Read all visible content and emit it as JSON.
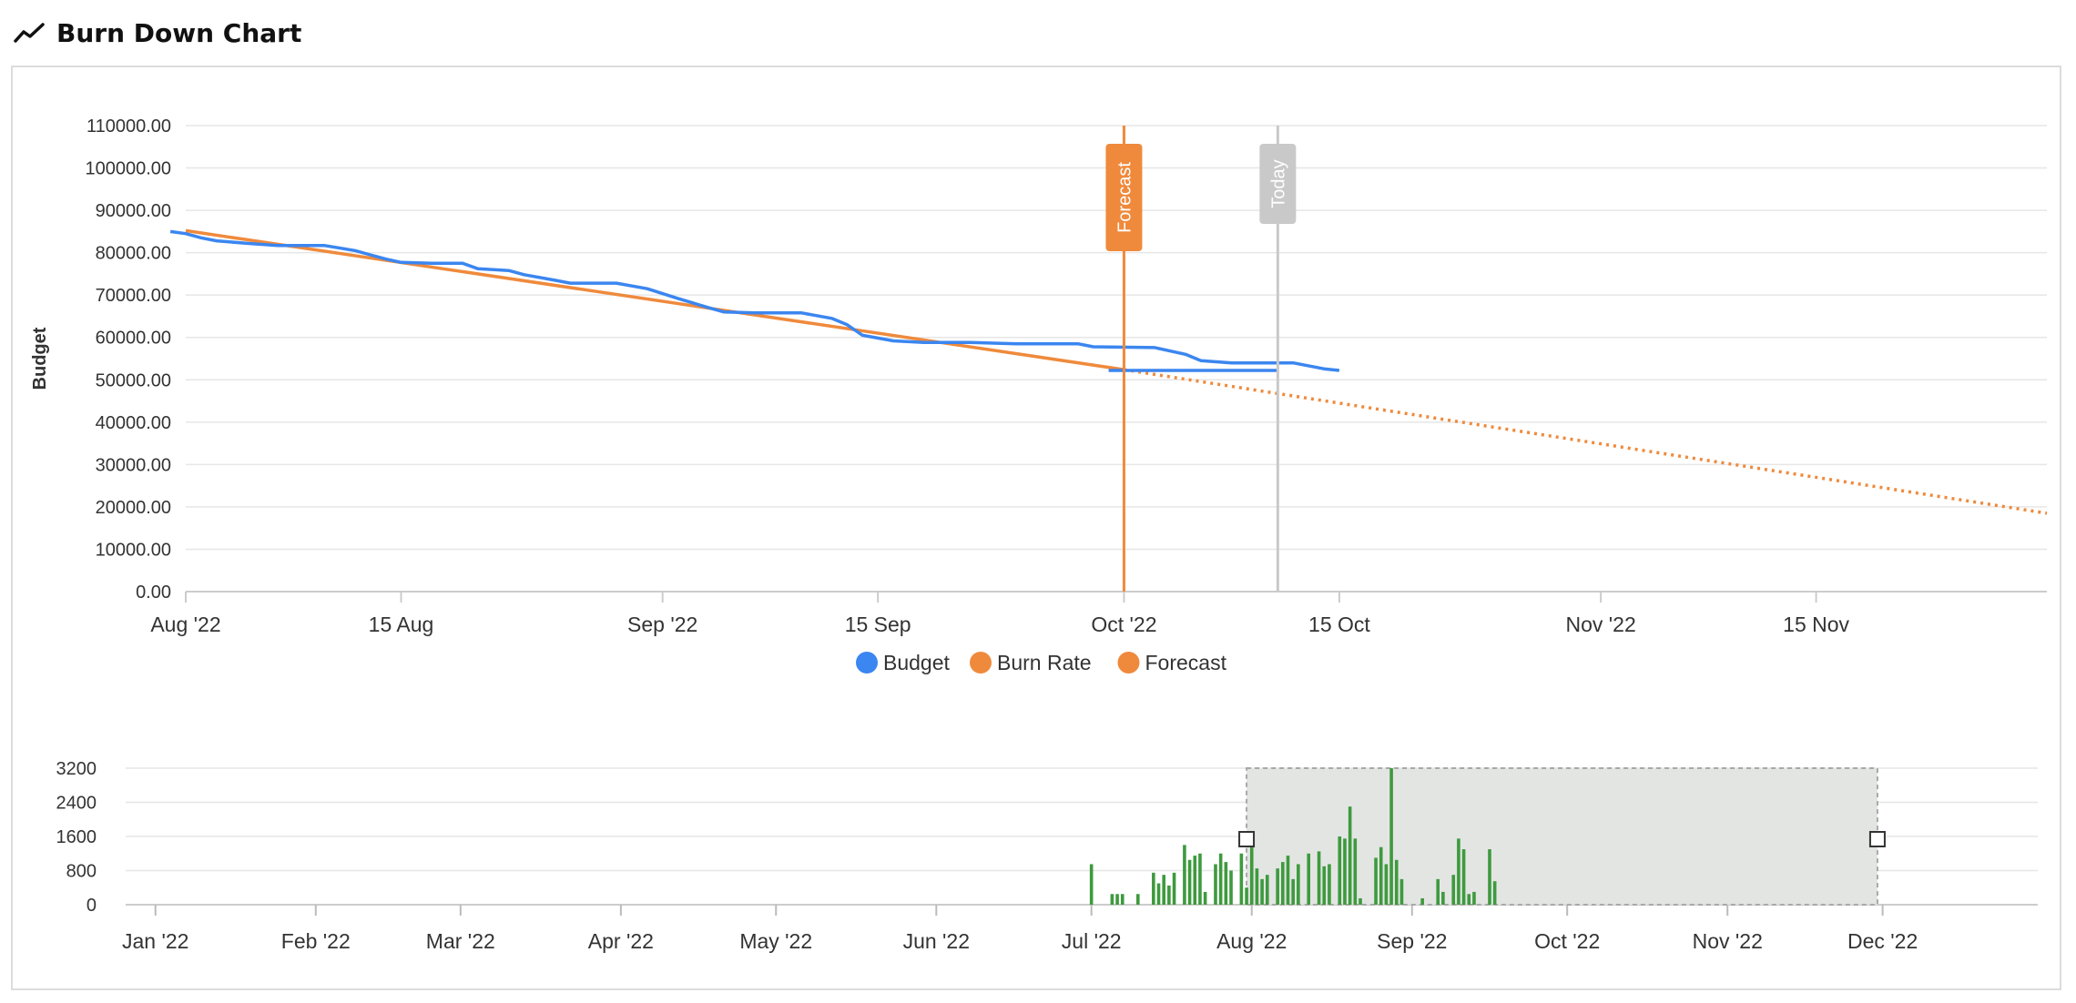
{
  "header": {
    "title": "Burn Down Chart",
    "icon": "line-chart-icon"
  },
  "colors": {
    "budget": "#3b86f0",
    "burn_rate": "#ef8a3c",
    "forecast": "#ef8a3c",
    "today_band": "#c9c9c9",
    "bars": "#3e9a3e",
    "navigator_mask": "#e3e5e3",
    "grid": "#e6e6e6"
  },
  "chart_data": [
    {
      "type": "line",
      "title": "",
      "xlabel": "",
      "ylabel": "Budget",
      "x_range": [
        "2022-08-01",
        "2022-11-30"
      ],
      "ylim": [
        0,
        110000
      ],
      "y_ticks": [
        "0.00",
        "10000.00",
        "20000.00",
        "30000.00",
        "40000.00",
        "50000.00",
        "60000.00",
        "70000.00",
        "80000.00",
        "90000.00",
        "100000.00",
        "110000.00"
      ],
      "x_ticks": [
        {
          "date": "2022-08-01",
          "label": "Aug '22"
        },
        {
          "date": "2022-08-15",
          "label": "15 Aug"
        },
        {
          "date": "2022-09-01",
          "label": "Sep '22"
        },
        {
          "date": "2022-09-15",
          "label": "15 Sep"
        },
        {
          "date": "2022-10-01",
          "label": "Oct '22"
        },
        {
          "date": "2022-10-15",
          "label": "15 Oct"
        },
        {
          "date": "2022-11-01",
          "label": "Nov '22"
        },
        {
          "date": "2022-11-15",
          "label": "15 Nov"
        }
      ],
      "legend_position": "bottom-center",
      "grid": true,
      "series": [
        {
          "name": "Budget",
          "style": "solid",
          "points": [
            [
              "2022-07-31",
              85000
            ],
            [
              "2022-08-01",
              84500
            ],
            [
              "2022-08-02",
              83500
            ],
            [
              "2022-08-03",
              82800
            ],
            [
              "2022-08-05",
              82200
            ],
            [
              "2022-08-07",
              81700
            ],
            [
              "2022-08-10",
              81700
            ],
            [
              "2022-08-12",
              80500
            ],
            [
              "2022-08-13",
              79500
            ],
            [
              "2022-08-14",
              78500
            ],
            [
              "2022-08-15",
              77700
            ],
            [
              "2022-08-17",
              77500
            ],
            [
              "2022-08-19",
              77500
            ],
            [
              "2022-08-20",
              76200
            ],
            [
              "2022-08-22",
              75800
            ],
            [
              "2022-08-23",
              74800
            ],
            [
              "2022-08-25",
              73500
            ],
            [
              "2022-08-26",
              72800
            ],
            [
              "2022-08-29",
              72800
            ],
            [
              "2022-08-31",
              71500
            ],
            [
              "2022-09-02",
              69200
            ],
            [
              "2022-09-04",
              67000
            ],
            [
              "2022-09-05",
              66000
            ],
            [
              "2022-09-07",
              65800
            ],
            [
              "2022-09-10",
              65800
            ],
            [
              "2022-09-12",
              64500
            ],
            [
              "2022-09-13",
              63000
            ],
            [
              "2022-09-14",
              60500
            ],
            [
              "2022-09-16",
              59200
            ],
            [
              "2022-09-18",
              58800
            ],
            [
              "2022-09-21",
              58800
            ],
            [
              "2022-09-24",
              58500
            ],
            [
              "2022-09-28",
              58500
            ],
            [
              "2022-09-29",
              57800
            ],
            [
              "2022-10-03",
              57600
            ],
            [
              "2022-10-05",
              56000
            ],
            [
              "2022-10-06",
              54500
            ],
            [
              "2022-10-08",
              54000
            ],
            [
              "2022-10-12",
              54000
            ],
            [
              "2022-10-14",
              52600
            ],
            [
              "2022-10-15",
              52200
            ],
            [
              "2022-09-30",
              52200
            ],
            [
              "2022-10-11",
              52200
            ]
          ]
        },
        {
          "name": "Burn Rate",
          "style": "solid",
          "points": [
            [
              "2022-08-01",
              85200
            ],
            [
              "2022-10-01",
              52400
            ]
          ]
        },
        {
          "name": "Forecast",
          "style": "dotted",
          "points": [
            [
              "2022-10-01",
              52400
            ],
            [
              "2022-11-30",
              18500
            ]
          ]
        }
      ],
      "plot_lines": [
        {
          "date": "2022-10-01",
          "label": "Forecast"
        },
        {
          "date": "2022-10-11",
          "label": "Today"
        }
      ]
    },
    {
      "type": "bar",
      "title": "",
      "x_range": [
        "2021-12-28",
        "2022-12-31"
      ],
      "ylim": [
        0,
        3200
      ],
      "y_ticks": [
        "0",
        "800",
        "1600",
        "2400",
        "3200"
      ],
      "x_ticks": [
        {
          "date": "2022-01-01",
          "label": "Jan '22"
        },
        {
          "date": "2022-02-01",
          "label": "Feb '22"
        },
        {
          "date": "2022-03-01",
          "label": "Mar '22"
        },
        {
          "date": "2022-04-01",
          "label": "Apr '22"
        },
        {
          "date": "2022-05-01",
          "label": "May '22"
        },
        {
          "date": "2022-06-01",
          "label": "Jun '22"
        },
        {
          "date": "2022-07-01",
          "label": "Jul '22"
        },
        {
          "date": "2022-08-01",
          "label": "Aug '22"
        },
        {
          "date": "2022-09-01",
          "label": "Sep '22"
        },
        {
          "date": "2022-10-01",
          "label": "Oct '22"
        },
        {
          "date": "2022-11-01",
          "label": "Nov '22"
        },
        {
          "date": "2022-12-01",
          "label": "Dec '22"
        }
      ],
      "selection": [
        "2022-07-31",
        "2022-11-30"
      ],
      "bars": [
        [
          "2022-07-01",
          950
        ],
        [
          "2022-07-05",
          250
        ],
        [
          "2022-07-06",
          250
        ],
        [
          "2022-07-07",
          250
        ],
        [
          "2022-07-10",
          250
        ],
        [
          "2022-07-13",
          750
        ],
        [
          "2022-07-14",
          500
        ],
        [
          "2022-07-15",
          700
        ],
        [
          "2022-07-16",
          450
        ],
        [
          "2022-07-17",
          750
        ],
        [
          "2022-07-19",
          1400
        ],
        [
          "2022-07-20",
          1050
        ],
        [
          "2022-07-21",
          1150
        ],
        [
          "2022-07-22",
          1200
        ],
        [
          "2022-07-23",
          300
        ],
        [
          "2022-07-25",
          950
        ],
        [
          "2022-07-26",
          1200
        ],
        [
          "2022-07-27",
          1000
        ],
        [
          "2022-07-28",
          800
        ],
        [
          "2022-07-30",
          1200
        ],
        [
          "2022-07-31",
          400
        ],
        [
          "2022-08-01",
          1500
        ],
        [
          "2022-08-02",
          850
        ],
        [
          "2022-08-03",
          600
        ],
        [
          "2022-08-04",
          700
        ],
        [
          "2022-08-06",
          850
        ],
        [
          "2022-08-07",
          1000
        ],
        [
          "2022-08-08",
          1150
        ],
        [
          "2022-08-09",
          600
        ],
        [
          "2022-08-10",
          950
        ],
        [
          "2022-08-12",
          1200
        ],
        [
          "2022-08-14",
          1250
        ],
        [
          "2022-08-15",
          900
        ],
        [
          "2022-08-16",
          950
        ],
        [
          "2022-08-18",
          1600
        ],
        [
          "2022-08-19",
          1550
        ],
        [
          "2022-08-20",
          2300
        ],
        [
          "2022-08-21",
          1550
        ],
        [
          "2022-08-22",
          150
        ],
        [
          "2022-08-25",
          1100
        ],
        [
          "2022-08-26",
          1350
        ],
        [
          "2022-08-27",
          950
        ],
        [
          "2022-08-28",
          3200
        ],
        [
          "2022-08-29",
          1050
        ],
        [
          "2022-08-30",
          600
        ],
        [
          "2022-09-03",
          150
        ],
        [
          "2022-09-06",
          600
        ],
        [
          "2022-09-07",
          300
        ],
        [
          "2022-09-09",
          700
        ],
        [
          "2022-09-10",
          1550
        ],
        [
          "2022-09-11",
          1300
        ],
        [
          "2022-09-12",
          250
        ],
        [
          "2022-09-13",
          300
        ],
        [
          "2022-09-16",
          1300
        ],
        [
          "2022-09-17",
          550
        ]
      ]
    }
  ]
}
